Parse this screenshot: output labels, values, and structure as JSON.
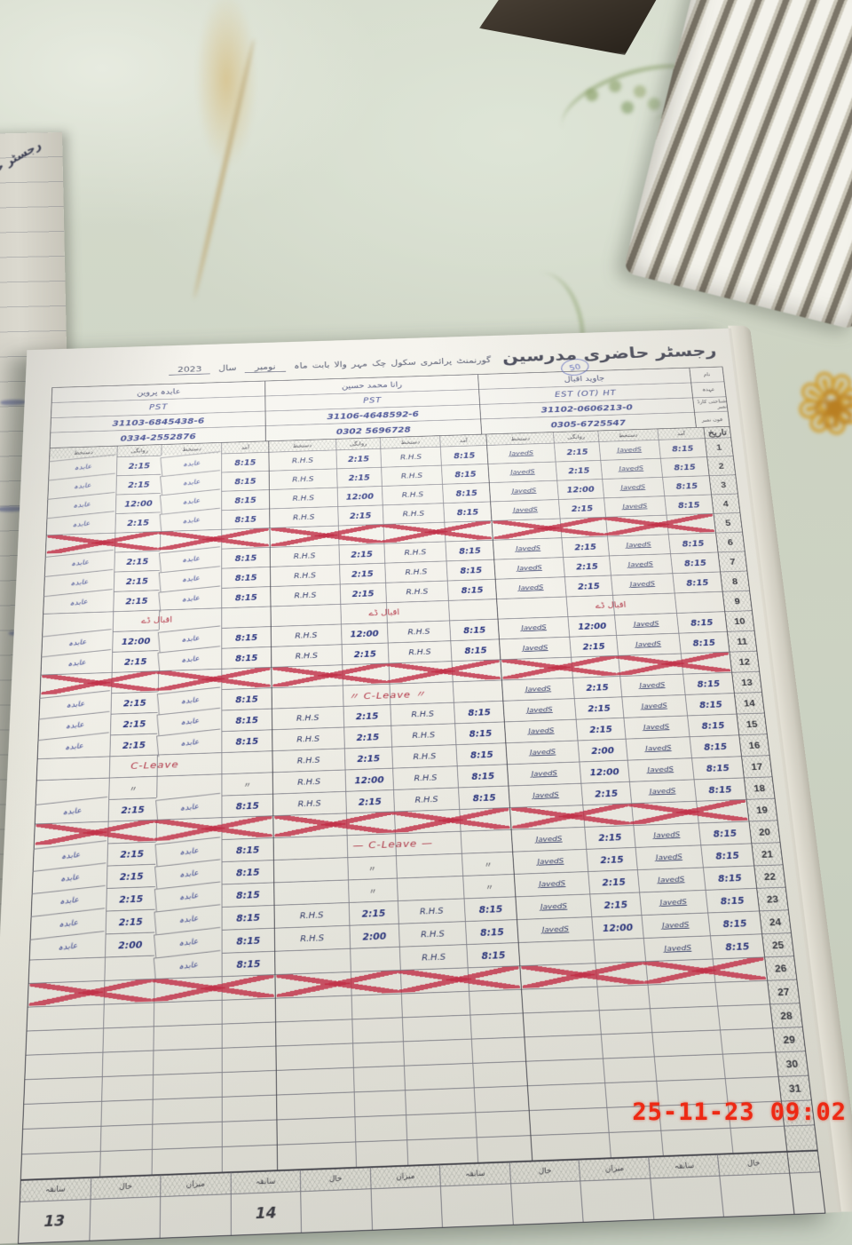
{
  "photo": {
    "timestamp": "25-11-23 09:02",
    "left_page_text": "رجسٹر حاضری"
  },
  "heading": {
    "title": "رجسٹر حاضری مدرسین",
    "badge": "50",
    "line_prefix": "گورنمنٹ پرائمری سکول چک مہر والا",
    "month_label": "بابت ماہ",
    "month": "نومبر",
    "year_label": "سال",
    "year": "2023"
  },
  "info": {
    "row_labels": [
      "نام",
      "عہدہ",
      "شناختی کارڈ نمبر",
      "فون نمبر"
    ],
    "teachers": [
      {
        "name": "عابدہ پروین",
        "designation": "PST",
        "cnic": "31103-6845438-6",
        "phone": "0334-2552876",
        "sig": "عابدہ"
      },
      {
        "name": "رانا محمد حسین",
        "designation": "PST",
        "cnic": "31106-4648592-6",
        "phone": "0302 5696728",
        "sig": "R.H.S"
      },
      {
        "name": "جاوید اقبال",
        "designation": "EST (OT) HT",
        "cnic": "31102-0606213-0",
        "phone": "0305-6725547",
        "sig": "JavedS"
      }
    ]
  },
  "grid": {
    "col_headers": [
      "دستخط",
      "روانگی",
      "دستخط",
      "آمد"
    ],
    "date_header": "تاریخ",
    "rows": [
      {
        "day": 1,
        "b": [
          {
            "d": "2:15",
            "a": "8:15"
          },
          {
            "d": "2:15",
            "a": "8:15"
          },
          {
            "d": "2:15",
            "a": "8:15"
          }
        ]
      },
      {
        "day": 2,
        "b": [
          {
            "d": "2:15",
            "a": "8:15"
          },
          {
            "d": "2:15",
            "a": "8:15"
          },
          {
            "d": "2:15",
            "a": "8:15"
          }
        ]
      },
      {
        "day": 3,
        "b": [
          {
            "d": "12:00",
            "a": "8:15"
          },
          {
            "d": "12:00",
            "a": "8:15"
          },
          {
            "d": "12:00",
            "a": "8:15"
          }
        ]
      },
      {
        "day": 4,
        "b": [
          {
            "d": "2:15",
            "a": "8:15"
          },
          {
            "d": "2:15",
            "a": "8:15"
          },
          {
            "d": "2:15",
            "a": "8:15"
          }
        ]
      },
      {
        "day": 5,
        "cross": true
      },
      {
        "day": 6,
        "b": [
          {
            "d": "2:15",
            "a": "8:15"
          },
          {
            "d": "2:15",
            "a": "8:15"
          },
          {
            "d": "2:15",
            "a": "8:15"
          }
        ]
      },
      {
        "day": 7,
        "b": [
          {
            "d": "2:15",
            "a": "8:15"
          },
          {
            "d": "2:15",
            "a": "8:15"
          },
          {
            "d": "2:15",
            "a": "8:15"
          }
        ]
      },
      {
        "day": 8,
        "b": [
          {
            "d": "2:15",
            "a": "8:15"
          },
          {
            "d": "2:15",
            "a": "8:15"
          },
          {
            "d": "2:15",
            "a": "8:15"
          }
        ]
      },
      {
        "day": 9,
        "holiday": "اقبال ڈے"
      },
      {
        "day": 10,
        "b": [
          {
            "d": "12:00",
            "a": "8:15"
          },
          {
            "d": "12:00",
            "a": "8:15"
          },
          {
            "d": "12:00",
            "a": "8:15"
          }
        ]
      },
      {
        "day": 11,
        "b": [
          {
            "d": "2:15",
            "a": "8:15"
          },
          {
            "d": "2:15",
            "a": "8:15"
          },
          {
            "d": "2:15",
            "a": "8:15"
          }
        ]
      },
      {
        "day": 12,
        "cross": true
      },
      {
        "day": 13,
        "b": [
          {
            "d": "2:15",
            "a": "8:15"
          },
          {
            "lv": "〃 C-Leave 〃"
          },
          {
            "d": "2:15",
            "a": "8:15"
          }
        ]
      },
      {
        "day": 14,
        "b": [
          {
            "d": "2:15",
            "a": "8:15"
          },
          {
            "d": "2:15",
            "a": "8:15"
          },
          {
            "d": "2:15",
            "a": "8:15"
          }
        ]
      },
      {
        "day": 15,
        "b": [
          {
            "d": "2:15",
            "a": "8:15"
          },
          {
            "d": "2:15",
            "a": "8:15"
          },
          {
            "d": "2:15",
            "a": "8:15"
          }
        ]
      },
      {
        "day": 16,
        "b": [
          {
            "lv": "C-Leave"
          },
          {
            "d": "2:15",
            "a": "8:15"
          },
          {
            "d": "2:00",
            "a": "8:15"
          }
        ]
      },
      {
        "day": 17,
        "b": [
          {
            "dt": true
          },
          {
            "d": "12:00",
            "a": "8:15"
          },
          {
            "d": "12:00",
            "a": "8:15"
          }
        ]
      },
      {
        "day": 18,
        "b": [
          {
            "d": "2:15",
            "a": "8:15"
          },
          {
            "d": "2:15",
            "a": "8:15"
          },
          {
            "d": "2:15",
            "a": "8:15"
          }
        ]
      },
      {
        "day": 19,
        "cross": true
      },
      {
        "day": 20,
        "b": [
          {
            "d": "2:15",
            "a": "8:15"
          },
          {
            "lv": "— C-Leave —"
          },
          {
            "d": "2:15",
            "a": "8:15"
          }
        ]
      },
      {
        "day": 21,
        "b": [
          {
            "d": "2:15",
            "a": "8:15"
          },
          {
            "dt": true
          },
          {
            "d": "2:15",
            "a": "8:15"
          }
        ]
      },
      {
        "day": 22,
        "b": [
          {
            "d": "2:15",
            "a": "8:15"
          },
          {
            "dt": true
          },
          {
            "d": "2:15",
            "a": "8:15"
          }
        ]
      },
      {
        "day": 23,
        "b": [
          {
            "d": "2:15",
            "a": "8:15"
          },
          {
            "d": "2:15",
            "a": "8:15"
          },
          {
            "d": "2:15",
            "a": "8:15"
          }
        ]
      },
      {
        "day": 24,
        "b": [
          {
            "d": "2:00",
            "a": "8:15"
          },
          {
            "d": "2:00",
            "a": "8:15"
          },
          {
            "d": "12:00",
            "a": "8:15"
          }
        ]
      },
      {
        "day": 25,
        "b": [
          {
            "a": "8:15"
          },
          {
            "a": "8:15"
          },
          {
            "a": "8:15"
          }
        ]
      },
      {
        "day": 26,
        "cross": true
      },
      {
        "day": 27,
        "b": null
      },
      {
        "day": 28,
        "b": null
      },
      {
        "day": 29,
        "b": null
      },
      {
        "day": 30,
        "b": null
      },
      {
        "day": 31,
        "b": null
      }
    ]
  },
  "summary": {
    "cells": [
      {
        "l": "سابقہ",
        "v": "13"
      },
      {
        "l": "حال",
        "v": ""
      },
      {
        "l": "میزان",
        "v": ""
      },
      {
        "l": "سابقہ",
        "v": "14"
      },
      {
        "l": "حال",
        "v": ""
      },
      {
        "l": "میزان",
        "v": ""
      },
      {
        "l": "سابقہ",
        "v": ""
      },
      {
        "l": "حال",
        "v": ""
      },
      {
        "l": "میزان",
        "v": ""
      },
      {
        "l": "سابقہ",
        "v": ""
      },
      {
        "l": "حال",
        "v": ""
      }
    ]
  }
}
